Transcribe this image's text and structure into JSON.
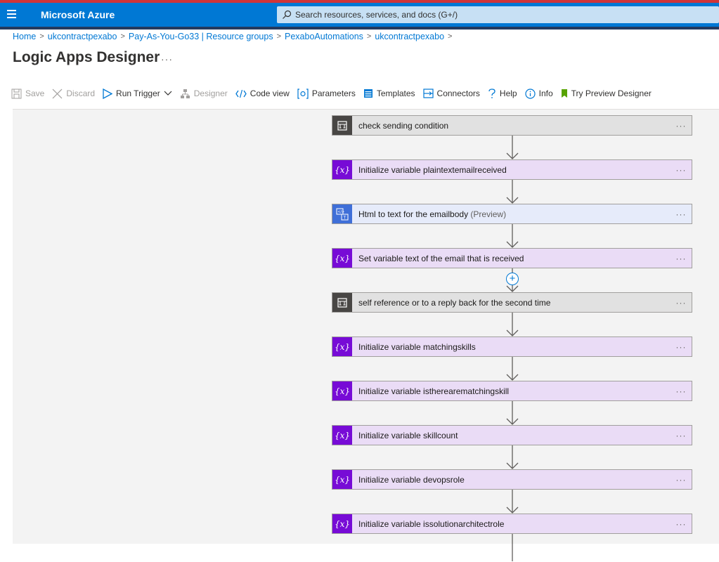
{
  "topbar": {
    "brand": "Microsoft Azure",
    "search_placeholder": "Search resources, services, and docs (G+/)",
    "accent_color": "#0078d4"
  },
  "breadcrumb": [
    "Home",
    "ukcontractpexabo",
    "Pay-As-You-Go33 | Resource groups",
    "PexaboAutomations",
    "ukcontractpexabo"
  ],
  "page": {
    "title": "Logic Apps Designer",
    "more": "···"
  },
  "toolbar": {
    "save": "Save",
    "discard": "Discard",
    "run_trigger": "Run Trigger",
    "designer": "Designer",
    "code_view": "Code view",
    "parameters": "Parameters",
    "templates": "Templates",
    "connectors": "Connectors",
    "help": "Help",
    "info": "Info",
    "try_preview": "Try Preview Designer"
  },
  "steps": [
    {
      "type": "control",
      "label": "check sending condition",
      "more": "···"
    },
    {
      "type": "variable",
      "icon": "{x}",
      "label": "Initialize variable plaintextemailreceived",
      "more": "···"
    },
    {
      "type": "html",
      "label": "Html to text for the emailbody",
      "preview": "(Preview)",
      "more": "···"
    },
    {
      "type": "variable",
      "icon": "{x}",
      "label": "Set variable text of the email that is received",
      "more": "···"
    },
    {
      "type": "control",
      "label": "self reference or to a reply back for the second time",
      "more": "···"
    },
    {
      "type": "variable",
      "icon": "{x}",
      "label": "Initialize variable matchingskills",
      "more": "···"
    },
    {
      "type": "variable",
      "icon": "{x}",
      "label": "Initialize variable istherearematchingskill",
      "more": "···"
    },
    {
      "type": "variable",
      "icon": "{x}",
      "label": "Initialize variable skillcount",
      "more": "···"
    },
    {
      "type": "variable",
      "icon": "{x}",
      "label": "Initialize variable devopsrole",
      "more": "···"
    },
    {
      "type": "variable",
      "icon": "{x}",
      "label": "Initialize variable issolutionarchitectrole",
      "more": "···"
    }
  ],
  "add_button": "+"
}
